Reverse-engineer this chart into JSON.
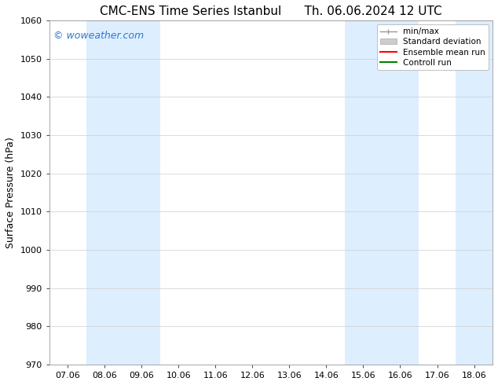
{
  "title_left": "CMC-ENS Time Series Istanbul",
  "title_right": "Th. 06.06.2024 12 UTC",
  "ylabel": "Surface Pressure (hPa)",
  "ylim": [
    970,
    1060
  ],
  "yticks": [
    970,
    980,
    990,
    1000,
    1010,
    1020,
    1030,
    1040,
    1050,
    1060
  ],
  "xtick_labels": [
    "07.06",
    "08.06",
    "09.06",
    "10.06",
    "11.06",
    "12.06",
    "13.06",
    "14.06",
    "15.06",
    "16.06",
    "17.06",
    "18.06"
  ],
  "xtick_positions": [
    0,
    1,
    2,
    3,
    4,
    5,
    6,
    7,
    8,
    9,
    10,
    11
  ],
  "xlim": [
    -0.5,
    11.5
  ],
  "shaded_bands": [
    {
      "x_start": 0.5,
      "x_end": 2.5,
      "color": "#ddeeff"
    },
    {
      "x_start": 7.5,
      "x_end": 9.5,
      "color": "#ddeeff"
    },
    {
      "x_start": 10.5,
      "x_end": 11.5,
      "color": "#ddeeff"
    }
  ],
  "watermark": "© woweather.com",
  "watermark_color": "#3377cc",
  "bg_color": "#ffffff",
  "plot_bg_color": "#ffffff",
  "grid_color": "#cccccc",
  "legend_items": [
    {
      "label": "min/max",
      "type": "errorbar",
      "color": "#999999"
    },
    {
      "label": "Standard deviation",
      "type": "band",
      "color": "#cccccc"
    },
    {
      "label": "Ensemble mean run",
      "type": "line",
      "color": "#ff0000"
    },
    {
      "label": "Controll run",
      "type": "line",
      "color": "#008000"
    }
  ],
  "title_fontsize": 11,
  "axis_label_fontsize": 9,
  "tick_fontsize": 8,
  "legend_fontsize": 7.5,
  "watermark_fontsize": 9
}
